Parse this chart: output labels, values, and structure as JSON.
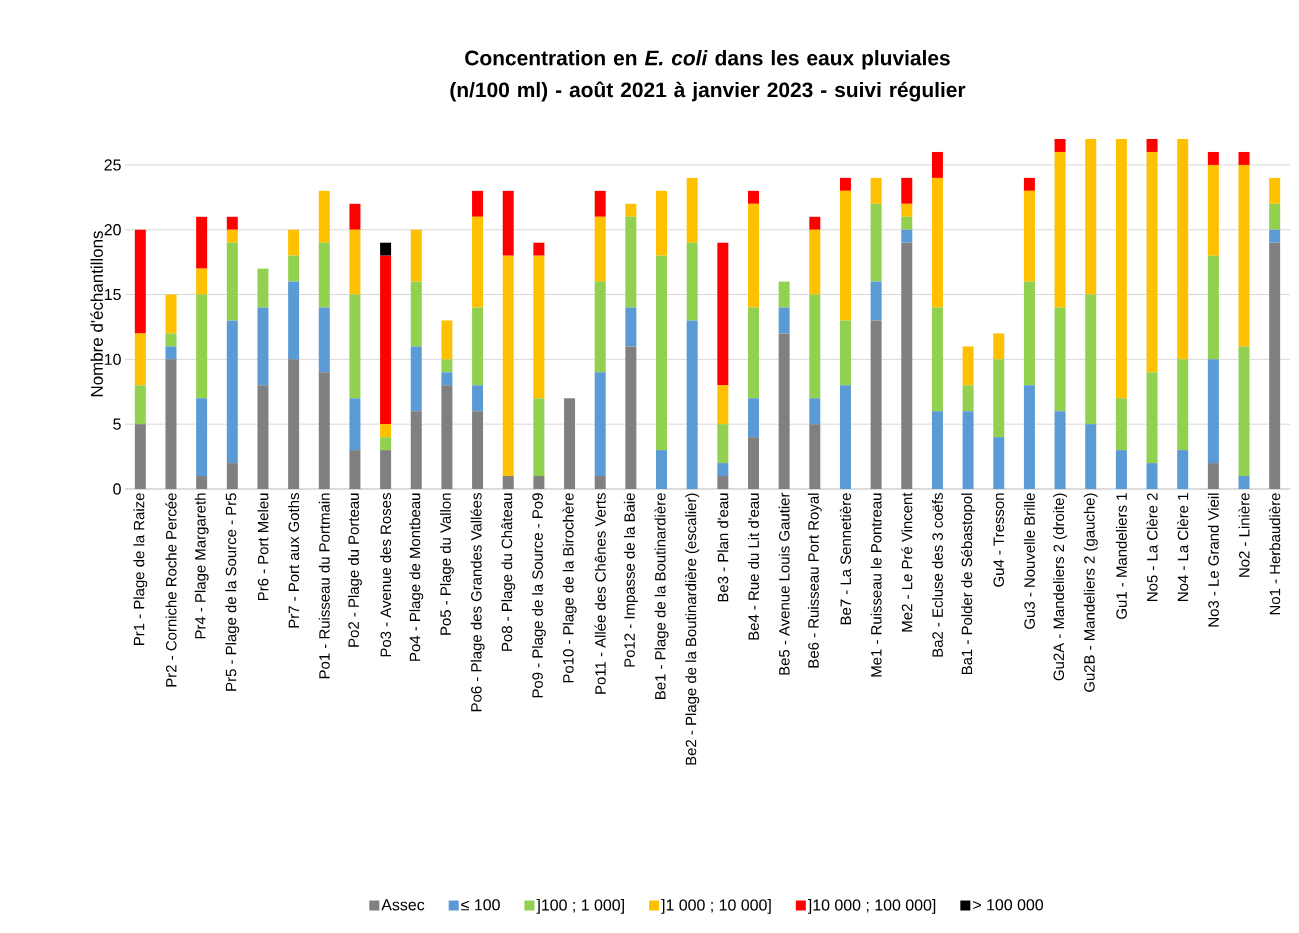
{
  "chart_data": {
    "type": "bar",
    "stacked": true,
    "title": "Concentration en *E. coli* dans les eaux pluviales (n/100 ml) - août 2021 à janvier 2023 - suivi régulier",
    "ylabel": "Nombre d'échantillons",
    "categories": [
      "Pr1 - Plage de la Raize",
      "Pr2 - Corniche Roche Percée",
      "Pr4 - Plage Margareth",
      "Pr5 - Plage de la Source - Pr5",
      "Pr6 - Port Meleu",
      "Pr7 - Port aux Goths",
      "Po1 - Ruisseau du Portmain",
      "Po2 - Plage du Porteau",
      "Po3 - Avenue des Roses",
      "Po4 - Plage de Montbeau",
      "Po5 - Plage du Vallon",
      "Po6 - Plage des Grandes Vallées",
      "Po8 - Plage du Château",
      "Po9 - Plage de la Source - Po9",
      "Po10 - Plage de la Birochère",
      "Po11 - Allée des Chênes Verts",
      "Po12 - Impasse de la Baie",
      "Be1 - Plage de la Boutinardière",
      "Be2 - Plage de la Boutinardière (escalier)",
      "Be3 - Plan d'eau",
      "Be4 - Rue du Lit d'eau",
      "Be5 - Avenue Louis Gautier",
      "Be6 - Ruisseau Port Royal",
      "Be7 - La Sennetière",
      "Me1 - Ruisseau le Pontreau",
      "Me2 - Le Pré Vincent",
      "Ba2 - Ecluse des 3 coëfs",
      "Ba1 - Polder de Sébastopol",
      "Gu4 - Tresson",
      "Gu3 - Nouvelle Brille",
      "Gu2A - Mandeliers 2 (droite)",
      "Gu2B - Mandeliers 2 (gauche)",
      "Gu1 - Mandeliers 1",
      "No5 - La Clère 2",
      "No4 - La Clère 1",
      "No3 - Le Grand Vieil",
      "No2 - Linière",
      "No1 - Herbaudière"
    ],
    "series": [
      {
        "name": "Assec",
        "color": "#808080",
        "values": [
          5,
          10,
          1,
          2,
          8,
          10,
          9,
          3,
          3,
          6,
          8,
          6,
          1,
          1,
          7,
          1,
          11,
          0,
          0,
          1,
          4,
          12,
          5,
          0,
          13,
          19,
          0,
          0,
          0,
          0,
          0,
          0,
          0,
          0,
          0,
          2,
          0,
          19
        ]
      },
      {
        "name": "≤ 100",
        "color": "#5b9bd5",
        "values": [
          0,
          1,
          6,
          11,
          6,
          6,
          5,
          4,
          0,
          5,
          1,
          2,
          0,
          0,
          0,
          8,
          3,
          3,
          13,
          1,
          3,
          2,
          2,
          8,
          3,
          1,
          6,
          6,
          4,
          8,
          6,
          5,
          3,
          2,
          3,
          8,
          1,
          1
        ]
      },
      {
        "name": "]100 ; 1 000]",
        "color": "#92d050",
        "values": [
          3,
          1,
          8,
          6,
          3,
          2,
          5,
          8,
          1,
          5,
          1,
          6,
          0,
          6,
          0,
          7,
          7,
          15,
          6,
          3,
          7,
          2,
          8,
          5,
          6,
          1,
          8,
          2,
          6,
          8,
          8,
          10,
          4,
          7,
          7,
          8,
          10,
          2
        ]
      },
      {
        "name": "]1 000 ; 10 000]",
        "color": "#ffc000",
        "values": [
          4,
          3,
          2,
          1,
          0,
          2,
          4,
          5,
          1,
          4,
          3,
          7,
          17,
          11,
          0,
          5,
          1,
          5,
          5,
          3,
          8,
          0,
          5,
          10,
          2,
          1,
          10,
          3,
          2,
          7,
          12,
          12,
          20,
          17,
          17,
          7,
          14,
          2
        ]
      },
      {
        "name": "]10 000 ; 100 000]",
        "color": "#ff0000",
        "values": [
          8,
          0,
          4,
          1,
          0,
          0,
          0,
          2,
          13,
          0,
          0,
          2,
          5,
          1,
          0,
          2,
          0,
          0,
          0,
          11,
          1,
          0,
          1,
          1,
          0,
          2,
          2,
          0,
          0,
          1,
          1,
          0,
          0,
          1,
          0,
          1,
          1,
          0
        ]
      },
      {
        "name": "> 100 000",
        "color": "#000000",
        "values": [
          0,
          0,
          0,
          0,
          0,
          0,
          0,
          0,
          1,
          0,
          0,
          0,
          0,
          0,
          0,
          0,
          0,
          0,
          0,
          0,
          0,
          0,
          0,
          0,
          0,
          0,
          0,
          0,
          0,
          0,
          0,
          0,
          0,
          0,
          0,
          0,
          0,
          0
        ]
      }
    ],
    "ylim": [
      0,
      27
    ],
    "yticks": [
      0,
      5,
      10,
      15,
      20,
      25
    ],
    "grid": "y",
    "legend": "bottom"
  }
}
